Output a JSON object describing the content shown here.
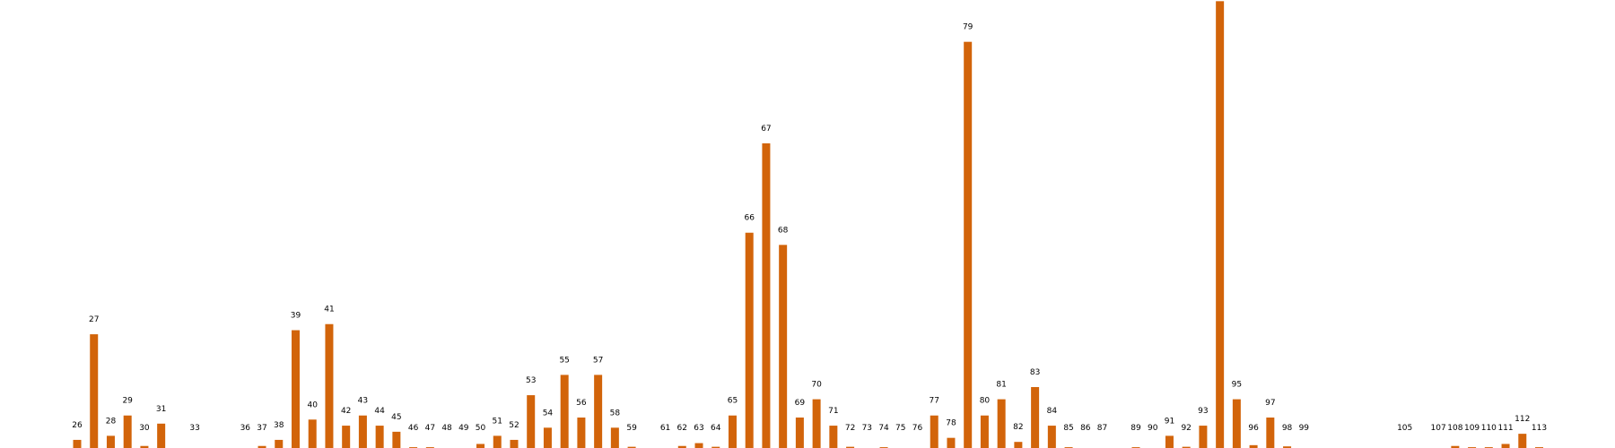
{
  "chart_data": {
    "type": "bar",
    "title": "",
    "xlabel": "",
    "ylabel": "",
    "grid": false,
    "legend": "none",
    "ylim": [
      0,
      105
    ],
    "colors": {
      "bar": "#D2640A",
      "label": "#000000",
      "background": "#FFFFFF"
    },
    "categories": [
      "26",
      "27",
      "28",
      "29",
      "30",
      "31",
      "33",
      "36",
      "37",
      "38",
      "39",
      "40",
      "41",
      "42",
      "43",
      "44",
      "45",
      "46",
      "47",
      "48",
      "49",
      "50",
      "51",
      "52",
      "53",
      "54",
      "55",
      "56",
      "57",
      "58",
      "59",
      "61",
      "62",
      "63",
      "64",
      "65",
      "66",
      "67",
      "68",
      "69",
      "70",
      "71",
      "72",
      "73",
      "74",
      "75",
      "76",
      "77",
      "78",
      "79",
      "80",
      "81",
      "82",
      "83",
      "84",
      "85",
      "86",
      "87",
      "89",
      "90",
      "91",
      "92",
      "93",
      "94",
      "95",
      "96",
      "97",
      "98",
      "99",
      "105",
      "107",
      "108",
      "109",
      "110",
      "111",
      "112",
      "113"
    ],
    "values": [
      2,
      28,
      3,
      8,
      0.5,
      6,
      0,
      0,
      0.5,
      2,
      29,
      7,
      30.5,
      5.5,
      8,
      5.5,
      4,
      0.2,
      0.2,
      0,
      0,
      1,
      3,
      2,
      13,
      5,
      18,
      7.5,
      18,
      5,
      0.3,
      0,
      0.5,
      1.2,
      0.3,
      8,
      53,
      75,
      50,
      7.5,
      12,
      5.5,
      0.3,
      0,
      0.2,
      0,
      0,
      8,
      2.5,
      100,
      8,
      12,
      1.5,
      15,
      5.5,
      0.2,
      0,
      0,
      0.2,
      0,
      3,
      0.3,
      5.5,
      110,
      12,
      0.7,
      7.5,
      0.4,
      0,
      0,
      0,
      0.5,
      0.2,
      0.2,
      1,
      3.5,
      0.2
    ]
  }
}
